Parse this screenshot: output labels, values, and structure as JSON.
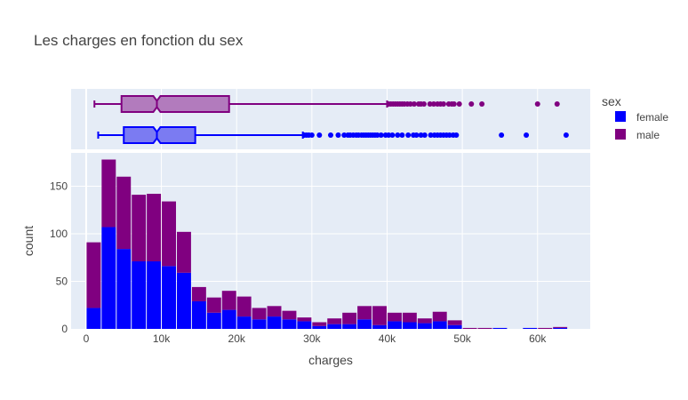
{
  "chart_data": {
    "type": "bar",
    "title": "Les charges en fonction du sex",
    "xlabel": "charges",
    "ylabel": "count",
    "xlim": [
      -2000,
      67000
    ],
    "ylim": [
      0,
      185
    ],
    "bin_width": 2000,
    "x_ticks": [
      0,
      10000,
      20000,
      30000,
      40000,
      50000,
      60000
    ],
    "x_tick_labels": [
      "0",
      "10k",
      "20k",
      "30k",
      "40k",
      "50k",
      "60k"
    ],
    "y_ticks": [
      0,
      50,
      100,
      150
    ],
    "y_tick_labels": [
      "0",
      "50",
      "100",
      "150"
    ],
    "grid": true,
    "barmode": "stack",
    "legend": {
      "title": "sex",
      "position": "right"
    },
    "bin_starts": [
      0,
      2000,
      4000,
      6000,
      8000,
      10000,
      12000,
      14000,
      16000,
      18000,
      20000,
      22000,
      24000,
      26000,
      28000,
      30000,
      32000,
      34000,
      36000,
      38000,
      40000,
      42000,
      44000,
      46000,
      48000,
      50000,
      52000,
      54000,
      56000,
      58000,
      60000,
      62000
    ],
    "series": [
      {
        "name": "female",
        "color": "#0000ff",
        "values": [
          22,
          107,
          84,
          71,
          71,
          66,
          59,
          29,
          17,
          20,
          13,
          10,
          13,
          10,
          8,
          3,
          5,
          5,
          10,
          4,
          8,
          7,
          6,
          8,
          4,
          0,
          0,
          1,
          0,
          1,
          0,
          1
        ]
      },
      {
        "name": "male",
        "color": "#800080",
        "values": [
          69,
          71,
          76,
          70,
          71,
          68,
          43,
          15,
          16,
          20,
          21,
          12,
          11,
          9,
          4,
          4,
          6,
          12,
          14,
          20,
          9,
          10,
          5,
          10,
          5,
          1,
          1,
          0,
          0,
          0,
          1,
          1
        ]
      }
    ],
    "box_plots": [
      {
        "name": "male",
        "color": "#800080",
        "fill": "#b27bbd",
        "min": 1100,
        "q1": 4700,
        "median": 9400,
        "q3": 19000,
        "upperfence": 40000,
        "outliers": [
          40200,
          40500,
          40800,
          41100,
          41400,
          41700,
          42000,
          42300,
          42700,
          43100,
          43600,
          44200,
          44500,
          44900,
          45700,
          46200,
          46700,
          47100,
          47500,
          48200,
          48600,
          48900,
          49600,
          51200,
          52600,
          60000,
          62600
        ]
      },
      {
        "name": "female",
        "color": "#0000ff",
        "fill": "#7b7bf2",
        "min": 1600,
        "q1": 5000,
        "median": 9400,
        "q3": 14500,
        "upperfence": 28800,
        "outliers": [
          29000,
          29300,
          29600,
          30000,
          31000,
          32500,
          33500,
          34300,
          34800,
          35100,
          35500,
          35900,
          36200,
          36600,
          36900,
          37200,
          37500,
          37800,
          38100,
          38400,
          38700,
          39200,
          39800,
          40200,
          40700,
          41400,
          42000,
          42800,
          43500,
          43900,
          44500,
          45000,
          45800,
          46300,
          46700,
          47100,
          47500,
          47900,
          48300,
          48800,
          49200,
          55200,
          58500,
          63800
        ]
      }
    ]
  }
}
